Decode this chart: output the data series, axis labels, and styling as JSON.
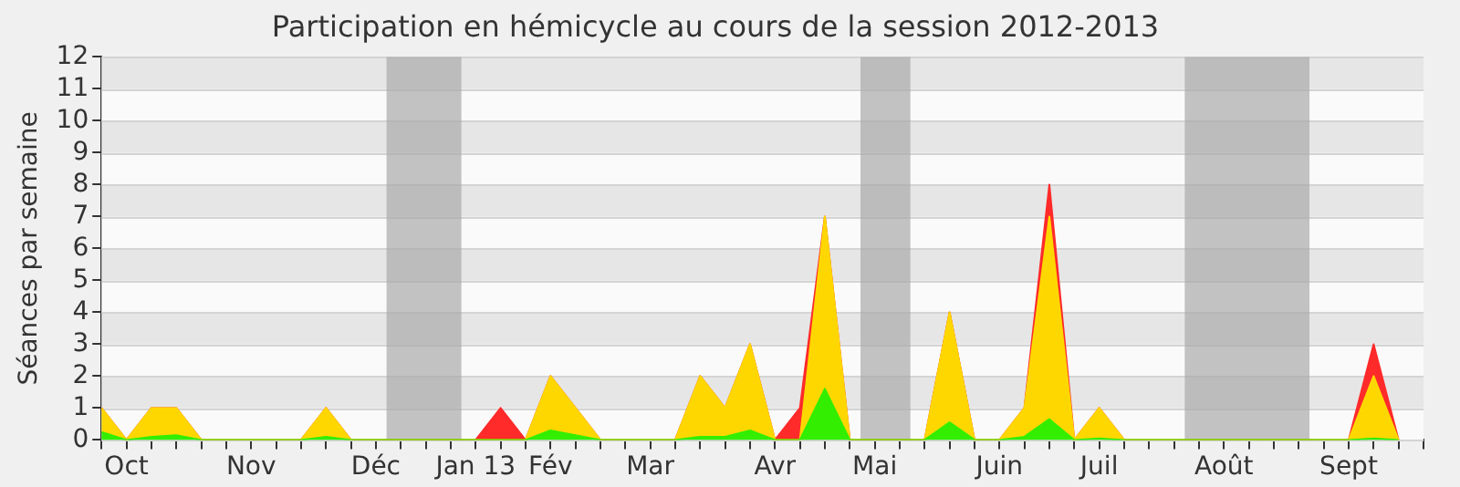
{
  "chart_data": {
    "type": "area",
    "title": "Participation en hémicycle au cours de la session 2012-2013",
    "ylabel": "Séances par semaine",
    "stacked": true,
    "grid": "y",
    "legend": false,
    "x": [
      "2012-09-28",
      "2012-10-05",
      "2012-10-12",
      "2012-10-19",
      "2012-10-26",
      "2012-11-02",
      "2012-11-09",
      "2012-11-16",
      "2012-11-23",
      "2012-11-30",
      "2012-12-07",
      "2012-12-14",
      "2012-12-21",
      "2012-12-28",
      "2013-01-04",
      "2013-01-11",
      "2013-01-18",
      "2013-01-25",
      "2013-02-01",
      "2013-02-08",
      "2013-02-15",
      "2013-02-22",
      "2013-03-01",
      "2013-03-08",
      "2013-03-15",
      "2013-03-22",
      "2013-03-29",
      "2013-04-05",
      "2013-04-12",
      "2013-04-19",
      "2013-04-26",
      "2013-05-03",
      "2013-05-10",
      "2013-05-17",
      "2013-05-24",
      "2013-05-31",
      "2013-06-07",
      "2013-06-14",
      "2013-06-21",
      "2013-06-28",
      "2013-07-05",
      "2013-07-12",
      "2013-07-19",
      "2013-07-26",
      "2013-08-02",
      "2013-08-09",
      "2013-08-16",
      "2013-08-23",
      "2013-08-30",
      "2013-09-06",
      "2013-09-13",
      "2013-09-20",
      "2013-09-27"
    ],
    "series": [
      {
        "color": "#33ee00",
        "values": [
          0.25,
          0,
          0.1,
          0.15,
          0,
          0,
          0,
          0,
          0,
          0.1,
          0,
          0,
          0,
          0,
          0,
          0,
          0,
          0,
          0.3,
          0.15,
          0,
          0,
          0,
          0,
          0.1,
          0.1,
          0.3,
          0,
          0,
          1.6,
          0,
          0,
          0,
          0,
          0.55,
          0,
          0,
          0.1,
          0.65,
          0,
          0.05,
          0,
          0,
          0,
          0,
          0,
          0,
          0,
          0,
          0,
          0,
          0.05,
          0
        ]
      },
      {
        "color": "#ffd700",
        "values": [
          0.75,
          0,
          0.9,
          0.85,
          0,
          0,
          0,
          0,
          0,
          0.9,
          0,
          0,
          0,
          0,
          0,
          0,
          0,
          0,
          1.7,
          0.85,
          0,
          0,
          0,
          0,
          1.9,
          0.9,
          2.7,
          0,
          0,
          5.4,
          0,
          0,
          0,
          0,
          3.45,
          0,
          0,
          0.9,
          6.35,
          0,
          0.95,
          0,
          0,
          0,
          0,
          0,
          0,
          0,
          0,
          0,
          0,
          1.95,
          0
        ]
      },
      {
        "color": "#ff2a2a",
        "values": [
          0,
          0,
          0,
          0,
          0,
          0,
          0,
          0,
          0,
          0,
          0,
          0,
          0,
          0,
          0,
          0,
          1,
          0,
          0,
          0,
          0,
          0,
          0,
          0,
          0,
          0,
          0,
          0,
          1,
          0,
          0,
          0,
          0,
          0,
          0,
          0,
          0,
          0,
          1,
          0,
          0,
          0,
          0,
          0,
          0,
          0,
          0,
          0,
          0,
          0,
          0,
          1,
          0
        ]
      }
    ],
    "xlim": [
      "2012-09-28",
      "2013-10-04"
    ],
    "xticks": [
      {
        "value": "2012-09-28",
        "label": null
      },
      {
        "value": "2012-10-05",
        "label": "Oct"
      },
      {
        "value": "2012-10-12",
        "label": null
      },
      {
        "value": "2012-10-19",
        "label": null
      },
      {
        "value": "2012-10-26",
        "label": null
      },
      {
        "value": "2012-11-02",
        "label": null
      },
      {
        "value": "2012-11-09",
        "label": "Nov"
      },
      {
        "value": "2012-11-16",
        "label": null
      },
      {
        "value": "2012-11-23",
        "label": null
      },
      {
        "value": "2012-11-30",
        "label": null
      },
      {
        "value": "2012-12-07",
        "label": null
      },
      {
        "value": "2012-12-14",
        "label": "Déc"
      },
      {
        "value": "2012-12-21",
        "label": null
      },
      {
        "value": "2012-12-28",
        "label": null
      },
      {
        "value": "2013-01-04",
        "label": null
      },
      {
        "value": "2013-01-11",
        "label": "Jan 13"
      },
      {
        "value": "2013-01-18",
        "label": null
      },
      {
        "value": "2013-01-25",
        "label": null
      },
      {
        "value": "2013-02-01",
        "label": "Fév"
      },
      {
        "value": "2013-02-08",
        "label": null
      },
      {
        "value": "2013-02-15",
        "label": null
      },
      {
        "value": "2013-02-22",
        "label": null
      },
      {
        "value": "2013-03-01",
        "label": "Mar"
      },
      {
        "value": "2013-03-08",
        "label": null
      },
      {
        "value": "2013-03-15",
        "label": null
      },
      {
        "value": "2013-03-22",
        "label": null
      },
      {
        "value": "2013-03-29",
        "label": null
      },
      {
        "value": "2013-04-05",
        "label": "Avr"
      },
      {
        "value": "2013-04-12",
        "label": null
      },
      {
        "value": "2013-04-19",
        "label": null
      },
      {
        "value": "2013-04-26",
        "label": null
      },
      {
        "value": "2013-05-03",
        "label": "Mai"
      },
      {
        "value": "2013-05-10",
        "label": null
      },
      {
        "value": "2013-05-17",
        "label": null
      },
      {
        "value": "2013-05-24",
        "label": null
      },
      {
        "value": "2013-05-31",
        "label": null
      },
      {
        "value": "2013-06-07",
        "label": "Juin"
      },
      {
        "value": "2013-06-14",
        "label": null
      },
      {
        "value": "2013-06-21",
        "label": null
      },
      {
        "value": "2013-06-28",
        "label": null
      },
      {
        "value": "2013-07-05",
        "label": "Juil"
      },
      {
        "value": "2013-07-12",
        "label": null
      },
      {
        "value": "2013-07-19",
        "label": null
      },
      {
        "value": "2013-07-26",
        "label": null
      },
      {
        "value": "2013-08-02",
        "label": null
      },
      {
        "value": "2013-08-09",
        "label": "Août"
      },
      {
        "value": "2013-08-16",
        "label": null
      },
      {
        "value": "2013-08-23",
        "label": null
      },
      {
        "value": "2013-08-30",
        "label": null
      },
      {
        "value": "2013-09-06",
        "label": null
      },
      {
        "value": "2013-09-13",
        "label": "Sept"
      },
      {
        "value": "2013-09-20",
        "label": null
      },
      {
        "value": "2013-09-27",
        "label": null
      },
      {
        "value": "2013-10-04",
        "label": null
      }
    ],
    "ylim": [
      0,
      12
    ],
    "yticks": [
      0,
      1,
      2,
      3,
      4,
      5,
      6,
      7,
      8,
      9,
      10,
      11,
      12
    ],
    "bands": [
      {
        "axis": "x",
        "from": "2012-12-17",
        "to": "2013-01-07",
        "color": "#aaaaaa"
      },
      {
        "axis": "x",
        "from": "2013-04-29",
        "to": "2013-05-13",
        "color": "#aaaaaa"
      },
      {
        "axis": "x",
        "from": "2013-07-29",
        "to": "2013-09-02",
        "color": "#aaaaaa"
      }
    ]
  }
}
